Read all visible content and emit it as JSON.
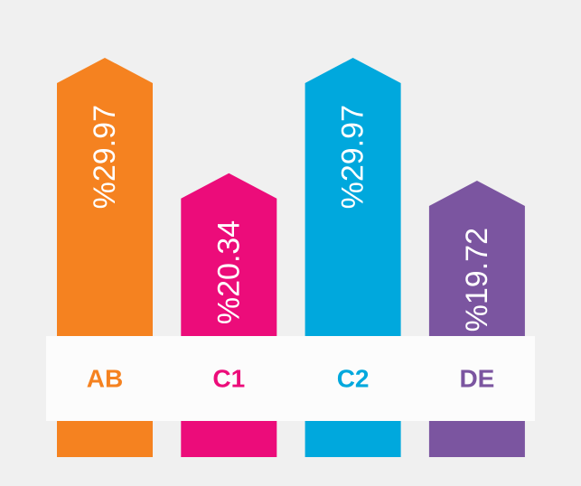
{
  "chart_data": {
    "type": "bar",
    "categories": [
      "AB",
      "C1",
      "C2",
      "DE"
    ],
    "values": [
      29.97,
      20.34,
      29.97,
      19.72
    ],
    "value_labels": [
      "%29.97",
      "%20.34",
      "%29.97",
      "%19.72"
    ],
    "colors": [
      "#f58220",
      "#ec0c7a",
      "#00a8dd",
      "#7b55a0"
    ],
    "title": "",
    "xlabel": "",
    "ylabel": "",
    "ylim": [
      0,
      40
    ],
    "grid": false,
    "legend": "none"
  }
}
